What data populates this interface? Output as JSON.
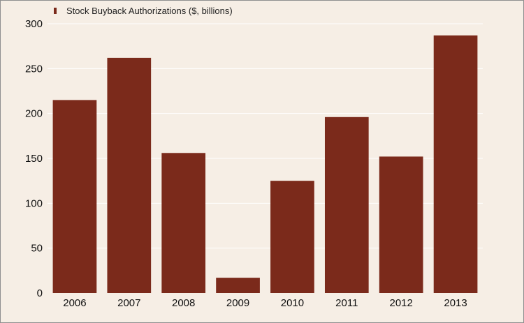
{
  "chart_data": {
    "type": "bar",
    "categories": [
      "2006",
      "2007",
      "2008",
      "2009",
      "2010",
      "2011",
      "2012",
      "2013"
    ],
    "series": [
      {
        "name": "Stock Buyback Authorizations ($, billions)",
        "values": [
          215,
          262,
          156,
          17,
          125,
          196,
          152,
          287
        ],
        "color": "#7b2a1b"
      }
    ],
    "ylim": [
      0,
      300
    ],
    "yticks": [
      0,
      50,
      100,
      150,
      200,
      250,
      300
    ],
    "grid": true,
    "legend_position": "top-left",
    "title": "",
    "xlabel": "",
    "ylabel": ""
  }
}
